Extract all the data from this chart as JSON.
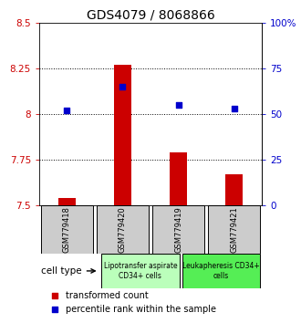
{
  "title": "GDS4079 / 8068866",
  "samples": [
    "GSM779418",
    "GSM779420",
    "GSM779419",
    "GSM779421"
  ],
  "bar_values": [
    7.54,
    8.27,
    7.79,
    7.67
  ],
  "bar_base": 7.5,
  "percentile_values": [
    52,
    65,
    55,
    53
  ],
  "ylim_left": [
    7.5,
    8.5
  ],
  "ylim_right": [
    0,
    100
  ],
  "yticks_left": [
    7.5,
    7.75,
    8.0,
    8.25,
    8.5
  ],
  "yticks_right": [
    0,
    25,
    50,
    75,
    100
  ],
  "ytick_labels_left": [
    "7.5",
    "7.75",
    "8",
    "8.25",
    "8.5"
  ],
  "ytick_labels_right": [
    "0",
    "25",
    "50",
    "75",
    "100%"
  ],
  "hlines": [
    7.75,
    8.0,
    8.25
  ],
  "bar_color": "#cc0000",
  "percentile_color": "#0000cc",
  "cell_groups": [
    {
      "label": "Lipotransfer aspirate\nCD34+ cells",
      "samples": [
        0,
        1
      ],
      "color": "#bbffbb"
    },
    {
      "label": "Leukapheresis CD34+\ncells",
      "samples": [
        2,
        3
      ],
      "color": "#55ee55"
    }
  ],
  "cell_type_label": "cell type",
  "legend_bar_label": "transformed count",
  "legend_pct_label": "percentile rank within the sample",
  "left_color": "#cc0000",
  "right_color": "#0000cc",
  "title_fontsize": 10,
  "tick_fontsize": 7.5,
  "sample_fontsize": 6,
  "group_fontsize": 5.5,
  "legend_fontsize": 7,
  "cell_type_fontsize": 7.5
}
